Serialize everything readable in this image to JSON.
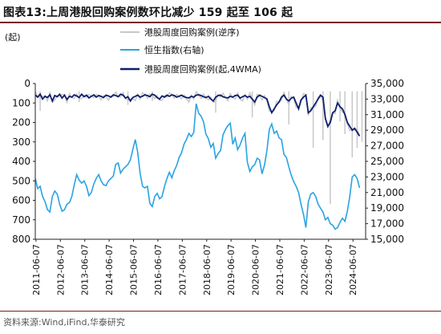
{
  "title": "图表13:上周港股回购案例数环比减少 159 起至 106 起",
  "source": "资料来源:Wind,iFind,华泰研究",
  "chart_data": {
    "type": "line",
    "left_unit": "(起)",
    "left_axis": {
      "min": 0,
      "max": 800,
      "reversed": true,
      "ticks": [
        0,
        100,
        200,
        300,
        400,
        500,
        600,
        700,
        800
      ]
    },
    "right_axis": {
      "min": 15000,
      "max": 35000,
      "ticks": [
        15000,
        17000,
        19000,
        21000,
        23000,
        25000,
        27000,
        29000,
        31000,
        33000,
        35000
      ]
    },
    "x_tick_labels": [
      "2011-06-07",
      "2012-06-07",
      "2013-06-07",
      "2014-06-07",
      "2015-06-07",
      "2016-06-07",
      "2017-06-07",
      "2018-06-07",
      "2019-06-07",
      "2020-06-07",
      "2021-06-07",
      "2022-06-07",
      "2023-06-07",
      "2024-06-07"
    ],
    "legend": [
      "港股周度回购案例(逆序)",
      "恒生指数(右轴)",
      "港股周度回购案例(起,4WMA)"
    ],
    "colors": {
      "weekly": "#c8c8c8",
      "hsi": "#29a3e3",
      "wma": "#0d1f6b"
    },
    "x": [
      2011.4,
      2011.5,
      2011.6,
      2011.7,
      2011.8,
      2011.9,
      2012.0,
      2012.1,
      2012.2,
      2012.3,
      2012.4,
      2012.5,
      2012.6,
      2012.7,
      2012.8,
      2012.9,
      2013.0,
      2013.1,
      2013.2,
      2013.3,
      2013.4,
      2013.5,
      2013.6,
      2013.7,
      2013.8,
      2013.9,
      2014.0,
      2014.1,
      2014.2,
      2014.3,
      2014.4,
      2014.5,
      2014.6,
      2014.7,
      2014.8,
      2014.9,
      2015.0,
      2015.1,
      2015.2,
      2015.3,
      2015.4,
      2015.5,
      2015.6,
      2015.7,
      2015.8,
      2015.9,
      2016.0,
      2016.1,
      2016.2,
      2016.3,
      2016.4,
      2016.5,
      2016.6,
      2016.7,
      2016.8,
      2016.9,
      2017.0,
      2017.1,
      2017.2,
      2017.3,
      2017.4,
      2017.5,
      2017.6,
      2017.7,
      2017.8,
      2017.9,
      2018.0,
      2018.1,
      2018.2,
      2018.3,
      2018.4,
      2018.5,
      2018.6,
      2018.7,
      2018.8,
      2018.9,
      2019.0,
      2019.1,
      2019.2,
      2019.3,
      2019.4,
      2019.5,
      2019.6,
      2019.7,
      2019.8,
      2019.9,
      2020.0,
      2020.1,
      2020.2,
      2020.3,
      2020.4,
      2020.5,
      2020.6,
      2020.7,
      2020.8,
      2020.9,
      2021.0,
      2021.1,
      2021.2,
      2021.3,
      2021.4,
      2021.5,
      2021.6,
      2021.7,
      2021.8,
      2021.9,
      2022.0,
      2022.1,
      2022.2,
      2022.3,
      2022.4,
      2022.5,
      2022.6,
      2022.7,
      2022.8,
      2022.9,
      2023.0,
      2023.1,
      2023.2,
      2023.3,
      2023.4,
      2023.5,
      2023.6,
      2023.7,
      2023.8,
      2023.9,
      2024.0,
      2024.1,
      2024.2,
      2024.3,
      2024.4,
      2024.5,
      2024.6,
      2024.7,
      2024.8,
      2024.9
    ],
    "hsi": [
      22800,
      21500,
      21800,
      20500,
      19800,
      18800,
      18500,
      20500,
      21200,
      20800,
      19500,
      18600,
      18800,
      19500,
      19700,
      20500,
      22000,
      23300,
      22600,
      22200,
      22500,
      21800,
      20600,
      21000,
      22100,
      22800,
      23300,
      22500,
      22000,
      21900,
      22500,
      22800,
      23100,
      24600,
      24800,
      23500,
      24000,
      24300,
      24600,
      25200,
      26500,
      27800,
      26200,
      23500,
      21800,
      21600,
      21800,
      19600,
      19200,
      20500,
      20900,
      20200,
      20500,
      21800,
      22800,
      23600,
      22900,
      23800,
      24500,
      25500,
      26100,
      27200,
      27800,
      28600,
      28200,
      28700,
      32400,
      31200,
      30800,
      30100,
      28500,
      27900,
      26800,
      27300,
      25400,
      26000,
      26400,
      28400,
      29100,
      29600,
      29900,
      27200,
      28000,
      26500,
      27100,
      28000,
      28600,
      24900,
      23700,
      24300,
      24600,
      25400,
      25200,
      23400,
      24500,
      26400,
      29100,
      29800,
      28600,
      28900,
      28000,
      27800,
      25900,
      25500,
      24300,
      23200,
      22400,
      21800,
      21000,
      19500,
      18200,
      16500,
      19800,
      20800,
      21000,
      20500,
      19500,
      19000,
      18500,
      17500,
      17800,
      17000,
      16800,
      16300,
      16500,
      17200,
      17700,
      17300,
      18600,
      20500,
      23000,
      23300,
      22800,
      21600
    ],
    "wma": [
      60,
      70,
      55,
      80,
      65,
      72,
      58,
      90,
      62,
      68,
      55,
      75,
      60,
      82,
      66,
      70,
      58,
      64,
      72,
      55,
      68,
      60,
      74,
      66,
      58,
      70,
      62,
      66,
      72,
      60,
      64,
      70,
      58,
      62,
      68,
      55,
      60,
      75,
      68,
      90,
      72,
      66,
      60,
      70,
      65,
      58,
      62,
      68,
      55,
      60,
      72,
      80,
      64,
      70,
      60,
      66,
      58,
      62,
      70,
      65,
      60,
      68,
      72,
      74,
      66,
      70,
      60,
      58,
      62,
      68,
      72,
      66,
      80,
      90,
      70,
      62,
      60,
      68,
      72,
      74,
      66,
      70,
      62,
      60,
      75,
      68,
      62,
      70,
      66,
      80,
      95,
      70,
      60,
      66,
      72,
      80,
      120,
      150,
      130,
      110,
      95,
      70,
      60,
      80,
      90,
      75,
      70,
      100,
      130,
      85,
      70,
      60,
      150,
      140,
      120,
      100,
      80,
      60,
      70,
      180,
      220,
      200,
      150,
      140,
      100,
      120,
      130,
      160,
      200,
      220,
      240,
      230,
      250,
      270
    ],
    "weekly_spikes": [
      [
        2011.6,
        140
      ],
      [
        2013.2,
        95
      ],
      [
        2015.2,
        110
      ],
      [
        2016.2,
        90
      ],
      [
        2018.8,
        150
      ],
      [
        2020.3,
        175
      ],
      [
        2021.8,
        210
      ],
      [
        2022.8,
        330
      ],
      [
        2023.2,
        290
      ],
      [
        2023.5,
        620
      ],
      [
        2023.9,
        195
      ],
      [
        2024.1,
        260
      ],
      [
        2024.4,
        380
      ],
      [
        2024.6,
        330
      ],
      [
        2024.8,
        300
      ]
    ]
  }
}
